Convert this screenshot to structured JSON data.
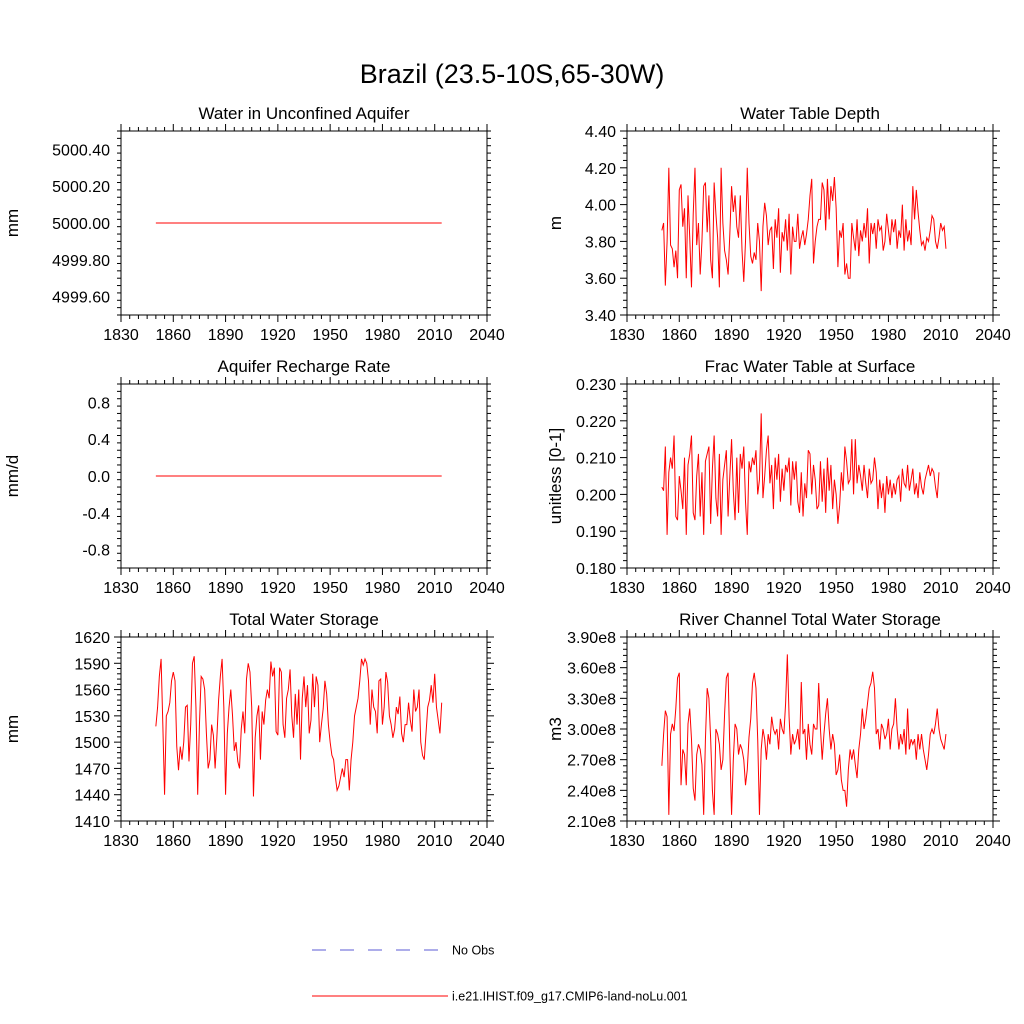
{
  "figure": {
    "title": "Brazil (23.5-10S,65-30W)",
    "legend": [
      {
        "label": "No Obs",
        "color": "#5b5bd6",
        "style": "dashed"
      },
      {
        "label": "i.e21.IHIST.f09_g17.CMIP6-land-noLu.001",
        "color": "#ff0000",
        "style": "solid"
      }
    ]
  },
  "chart_data": [
    {
      "type": "line",
      "title": "Water in Unconfined Aquifer",
      "ylabel": "mm",
      "xlim": [
        1830,
        2040
      ],
      "xticks": [
        1830,
        1860,
        1890,
        1920,
        1950,
        1980,
        2010,
        2040
      ],
      "ylim": [
        4999.5,
        5000.5
      ],
      "yticks": [
        4999.6,
        4999.8,
        5000.0,
        5000.2,
        5000.4
      ],
      "ytick_labels": [
        "4999.60",
        "4999.80",
        "5000.00",
        "5000.20",
        "5000.40"
      ],
      "grid": false,
      "series": [
        {
          "name": "i.e21.IHIST.f09_g17.CMIP6-land-noLu.001",
          "color": "#ff0000",
          "x": [
            1850,
            2014
          ],
          "y": [
            5000.0,
            5000.0
          ]
        }
      ]
    },
    {
      "type": "line",
      "title": "Water Table Depth",
      "ylabel": "m",
      "xlim": [
        1830,
        2040
      ],
      "xticks": [
        1830,
        1860,
        1890,
        1920,
        1950,
        1980,
        2010,
        2040
      ],
      "ylim": [
        3.4,
        4.4
      ],
      "yticks": [
        3.4,
        3.6,
        3.8,
        4.0,
        4.2,
        4.4
      ],
      "ytick_labels": [
        "3.40",
        "3.60",
        "3.80",
        "4.00",
        "4.20",
        "4.40"
      ],
      "grid": false,
      "series": [
        {
          "name": "i.e21.IHIST.f09_g17.CMIP6-land-noLu.001",
          "color": "#ff0000",
          "x_start": 1850,
          "x_step": 1,
          "y": [
            3.86,
            3.9,
            3.56,
            3.8,
            4.2,
            3.78,
            3.76,
            3.66,
            3.75,
            3.6,
            4.08,
            4.11,
            3.88,
            3.98,
            3.6,
            4.05,
            3.82,
            3.55,
            3.95,
            4.2,
            3.78,
            3.9,
            3.62,
            3.8,
            4.1,
            4.12,
            3.85,
            4.05,
            3.7,
            3.6,
            4.12,
            3.95,
            3.82,
            3.55,
            4.2,
            3.9,
            3.75,
            3.7,
            3.62,
            3.84,
            4.1,
            3.96,
            4.05,
            3.88,
            3.82,
            4.05,
            3.75,
            3.58,
            3.8,
            4.2,
            3.9,
            3.72,
            3.68,
            3.74,
            3.7,
            3.9,
            3.8,
            3.53,
            3.88,
            4.01,
            3.94,
            3.78,
            3.86,
            3.88,
            3.65,
            3.92,
            3.82,
            3.98,
            3.63,
            3.85,
            3.8,
            3.92,
            3.75,
            3.95,
            3.62,
            3.88,
            3.8,
            3.8,
            3.95,
            3.76,
            3.82,
            3.86,
            3.78,
            3.84,
            3.92,
            4.05,
            4.14,
            3.68,
            3.8,
            3.88,
            3.92,
            3.92,
            4.12,
            4.08,
            3.86,
            4.14,
            3.92,
            4.1,
            4.02,
            4.15,
            3.98,
            3.66,
            3.86,
            3.82,
            3.9,
            3.62,
            3.68,
            3.6,
            3.6,
            3.9,
            3.82,
            3.75,
            3.92,
            3.72,
            3.86,
            3.8,
            3.9,
            3.82,
            3.98,
            3.68,
            3.9,
            3.84,
            3.9,
            3.76,
            3.92,
            3.86,
            3.88,
            3.75,
            3.8,
            3.95,
            3.86,
            3.78,
            3.92,
            3.85,
            3.92,
            3.76,
            3.86,
            3.82,
            4.0,
            3.75,
            3.92,
            3.8,
            3.86,
            3.78,
            4.1,
            3.92,
            4.08,
            3.96,
            3.86,
            3.78,
            3.8,
            3.75,
            3.82,
            3.8,
            3.86,
            3.94,
            3.92,
            3.8,
            3.76,
            3.82,
            3.9,
            3.86,
            3.88,
            3.76
          ]
        }
      ]
    },
    {
      "type": "line",
      "title": "Aquifer Recharge Rate",
      "ylabel": "mm/d",
      "xlim": [
        1830,
        2040
      ],
      "xticks": [
        1830,
        1860,
        1890,
        1920,
        1950,
        1980,
        2010,
        2040
      ],
      "ylim": [
        -1.0,
        1.0
      ],
      "yticks": [
        -0.8,
        -0.4,
        0.0,
        0.4,
        0.8
      ],
      "ytick_labels": [
        "-0.8",
        "-0.4",
        "0.0",
        "0.4",
        "0.8"
      ],
      "grid": false,
      "series": [
        {
          "name": "i.e21.IHIST.f09_g17.CMIP6-land-noLu.001",
          "color": "#ff0000",
          "x": [
            1850,
            2014
          ],
          "y": [
            0.0,
            0.0
          ]
        }
      ]
    },
    {
      "type": "line",
      "title": "Frac Water Table at Surface",
      "ylabel": "unitless [0-1]",
      "xlim": [
        1830,
        2040
      ],
      "xticks": [
        1830,
        1860,
        1890,
        1920,
        1950,
        1980,
        2010,
        2040
      ],
      "ylim": [
        0.18,
        0.23
      ],
      "yticks": [
        0.18,
        0.19,
        0.2,
        0.21,
        0.22,
        0.23
      ],
      "ytick_labels": [
        "0.180",
        "0.190",
        "0.200",
        "0.210",
        "0.220",
        "0.230"
      ],
      "grid": false,
      "series": [
        {
          "name": "i.e21.IHIST.f09_g17.CMIP6-land-noLu.001",
          "color": "#ff0000",
          "x_start": 1850,
          "x_step": 1,
          "y": [
            0.202,
            0.201,
            0.213,
            0.189,
            0.206,
            0.21,
            0.207,
            0.216,
            0.194,
            0.193,
            0.205,
            0.201,
            0.196,
            0.21,
            0.189,
            0.208,
            0.211,
            0.216,
            0.195,
            0.193,
            0.205,
            0.211,
            0.194,
            0.206,
            0.189,
            0.209,
            0.211,
            0.213,
            0.192,
            0.207,
            0.216,
            0.199,
            0.194,
            0.211,
            0.189,
            0.204,
            0.208,
            0.212,
            0.194,
            0.205,
            0.215,
            0.201,
            0.193,
            0.21,
            0.195,
            0.211,
            0.207,
            0.213,
            0.198,
            0.189,
            0.209,
            0.206,
            0.21,
            0.208,
            0.212,
            0.2,
            0.204,
            0.222,
            0.199,
            0.205,
            0.212,
            0.216,
            0.203,
            0.208,
            0.196,
            0.21,
            0.204,
            0.211,
            0.198,
            0.207,
            0.201,
            0.208,
            0.206,
            0.21,
            0.197,
            0.209,
            0.204,
            0.209,
            0.198,
            0.195,
            0.206,
            0.194,
            0.203,
            0.199,
            0.212,
            0.211,
            0.2,
            0.208,
            0.204,
            0.196,
            0.197,
            0.209,
            0.198,
            0.207,
            0.195,
            0.21,
            0.201,
            0.208,
            0.196,
            0.204,
            0.2,
            0.192,
            0.197,
            0.206,
            0.201,
            0.213,
            0.209,
            0.203,
            0.204,
            0.215,
            0.2,
            0.215,
            0.203,
            0.208,
            0.205,
            0.201,
            0.208,
            0.203,
            0.199,
            0.207,
            0.203,
            0.204,
            0.21,
            0.206,
            0.196,
            0.204,
            0.199,
            0.203,
            0.195,
            0.205,
            0.2,
            0.204,
            0.199,
            0.203,
            0.2,
            0.204,
            0.205,
            0.198,
            0.207,
            0.203,
            0.202,
            0.208,
            0.201,
            0.204,
            0.207,
            0.2,
            0.203,
            0.199,
            0.206,
            0.202,
            0.2,
            0.204,
            0.206,
            0.208,
            0.205,
            0.207,
            0.206,
            0.202,
            0.199,
            0.206
          ]
        }
      ]
    },
    {
      "type": "line",
      "title": "Total Water Storage",
      "ylabel": "mm",
      "xlim": [
        1830,
        2040
      ],
      "xticks": [
        1830,
        1860,
        1890,
        1920,
        1950,
        1980,
        2010,
        2040
      ],
      "ylim": [
        1410,
        1620
      ],
      "yticks": [
        1410,
        1440,
        1470,
        1500,
        1530,
        1560,
        1590,
        1620
      ],
      "ytick_labels": [
        "1410",
        "1440",
        "1470",
        "1500",
        "1530",
        "1560",
        "1590",
        "1620"
      ],
      "grid": false,
      "series": [
        {
          "name": "i.e21.IHIST.f09_g17.CMIP6-land-noLu.001",
          "color": "#ff0000",
          "x_start": 1850,
          "x_step": 1,
          "y": [
            1518,
            1540,
            1575,
            1595,
            1520,
            1440,
            1530,
            1535,
            1545,
            1570,
            1580,
            1570,
            1495,
            1468,
            1495,
            1480,
            1500,
            1540,
            1542,
            1478,
            1520,
            1590,
            1598,
            1540,
            1440,
            1520,
            1575,
            1572,
            1560,
            1510,
            1470,
            1480,
            1520,
            1508,
            1470,
            1505,
            1548,
            1575,
            1595,
            1540,
            1440,
            1510,
            1540,
            1560,
            1530,
            1490,
            1500,
            1478,
            1470,
            1515,
            1535,
            1510,
            1572,
            1590,
            1580,
            1540,
            1438,
            1505,
            1530,
            1542,
            1480,
            1535,
            1520,
            1548,
            1560,
            1550,
            1592,
            1575,
            1585,
            1512,
            1508,
            1585,
            1580,
            1520,
            1505,
            1550,
            1560,
            1583,
            1530,
            1505,
            1555,
            1520,
            1560,
            1480,
            1550,
            1575,
            1540,
            1565,
            1510,
            1525,
            1578,
            1540,
            1575,
            1565,
            1500,
            1520,
            1538,
            1570,
            1555,
            1520,
            1500,
            1485,
            1480,
            1460,
            1445,
            1450,
            1460,
            1470,
            1460,
            1480,
            1480,
            1445,
            1480,
            1500,
            1530,
            1540,
            1550,
            1570,
            1595,
            1588,
            1595,
            1590,
            1570,
            1520,
            1560,
            1540,
            1535,
            1510,
            1570,
            1572,
            1520,
            1540,
            1580,
            1568,
            1530,
            1520,
            1505,
            1515,
            1540,
            1532,
            1552,
            1510,
            1500,
            1520,
            1520,
            1545,
            1525,
            1512,
            1560,
            1535,
            1540,
            1560,
            1500,
            1485,
            1480,
            1510,
            1540,
            1548,
            1565,
            1545,
            1578,
            1540,
            1525,
            1510,
            1545
          ]
        }
      ]
    },
    {
      "type": "line",
      "title": "River Channel Total Water Storage",
      "ylabel": "m3",
      "xlim": [
        1830,
        2040
      ],
      "xticks": [
        1830,
        1860,
        1890,
        1920,
        1950,
        1980,
        2010,
        2040
      ],
      "ylim": [
        210000000.0,
        390000000.0
      ],
      "yticks": [
        210000000.0,
        240000000.0,
        270000000.0,
        300000000.0,
        330000000.0,
        360000000.0,
        390000000.0
      ],
      "ytick_labels": [
        "2.10e8",
        "2.40e8",
        "2.70e8",
        "3.00e8",
        "3.30e8",
        "3.60e8",
        "3.90e8"
      ],
      "grid": false,
      "series": [
        {
          "name": "i.e21.IHIST.f09_g17.CMIP6-land-noLu.001",
          "color": "#ff0000",
          "x_start": 1850,
          "x_step": 1,
          "y": [
            264000000.0,
            295000000.0,
            318000000.0,
            312000000.0,
            216000000.0,
            295000000.0,
            305000000.0,
            298000000.0,
            320000000.0,
            350000000.0,
            355000000.0,
            245000000.0,
            280000000.0,
            275000000.0,
            245000000.0,
            305000000.0,
            320000000.0,
            290000000.0,
            242000000.0,
            230000000.0,
            275000000.0,
            285000000.0,
            280000000.0,
            265000000.0,
            216000000.0,
            290000000.0,
            340000000.0,
            330000000.0,
            290000000.0,
            240000000.0,
            216000000.0,
            300000000.0,
            295000000.0,
            285000000.0,
            260000000.0,
            270000000.0,
            315000000.0,
            350000000.0,
            355000000.0,
            280000000.0,
            216000000.0,
            270000000.0,
            305000000.0,
            300000000.0,
            275000000.0,
            285000000.0,
            280000000.0,
            270000000.0,
            245000000.0,
            260000000.0,
            292000000.0,
            310000000.0,
            345000000.0,
            355000000.0,
            340000000.0,
            290000000.0,
            216000000.0,
            280000000.0,
            300000000.0,
            290000000.0,
            270000000.0,
            295000000.0,
            285000000.0,
            312000000.0,
            300000000.0,
            295000000.0,
            300000000.0,
            280000000.0,
            310000000.0,
            300000000.0,
            295000000.0,
            325000000.0,
            373000000.0,
            312000000.0,
            275000000.0,
            295000000.0,
            285000000.0,
            290000000.0,
            300000000.0,
            280000000.0,
            346000000.0,
            295000000.0,
            300000000.0,
            270000000.0,
            305000000.0,
            285000000.0,
            275000000.0,
            305000000.0,
            300000000.0,
            300000000.0,
            345000000.0,
            300000000.0,
            270000000.0,
            295000000.0,
            315000000.0,
            330000000.0,
            300000000.0,
            280000000.0,
            295000000.0,
            285000000.0,
            255000000.0,
            260000000.0,
            275000000.0,
            250000000.0,
            240000000.0,
            240000000.0,
            224000000.0,
            260000000.0,
            280000000.0,
            270000000.0,
            280000000.0,
            265000000.0,
            252000000.0,
            280000000.0,
            295000000.0,
            320000000.0,
            300000000.0,
            310000000.0,
            325000000.0,
            340000000.0,
            345000000.0,
            356000000.0,
            340000000.0,
            295000000.0,
            300000000.0,
            280000000.0,
            305000000.0,
            300000000.0,
            290000000.0,
            295000000.0,
            310000000.0,
            280000000.0,
            300000000.0,
            305000000.0,
            330000000.0,
            300000000.0,
            280000000.0,
            295000000.0,
            285000000.0,
            300000000.0,
            275000000.0,
            320000000.0,
            280000000.0,
            290000000.0,
            285000000.0,
            290000000.0,
            270000000.0,
            295000000.0,
            280000000.0,
            295000000.0,
            280000000.0,
            270000000.0,
            260000000.0,
            275000000.0,
            295000000.0,
            300000000.0,
            295000000.0,
            305000000.0,
            320000000.0,
            300000000.0,
            290000000.0,
            285000000.0,
            280000000.0,
            295000000.0
          ]
        }
      ]
    }
  ]
}
